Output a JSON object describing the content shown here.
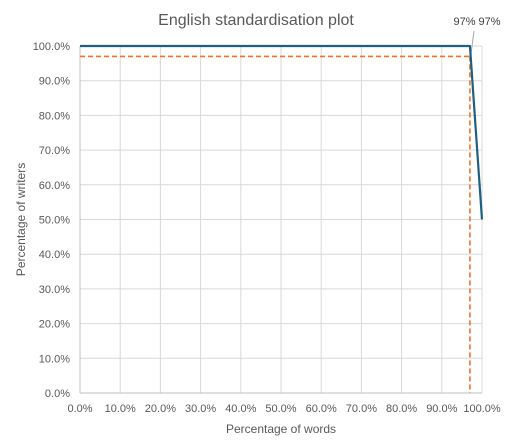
{
  "chart_data": {
    "type": "line",
    "title": "English standardisation plot",
    "xlabel": "Percentage of words",
    "ylabel": "Percentage of writers",
    "xlim": [
      0,
      100
    ],
    "ylim": [
      0,
      100
    ],
    "x_ticks": [
      "0.0%",
      "10.0%",
      "20.0%",
      "30.0%",
      "40.0%",
      "50.0%",
      "60.0%",
      "70.0%",
      "80.0%",
      "90.0%",
      "100.0%"
    ],
    "y_ticks": [
      "0.0%",
      "10.0%",
      "20.0%",
      "30.0%",
      "40.0%",
      "50.0%",
      "60.0%",
      "70.0%",
      "80.0%",
      "90.0%",
      "100.0%"
    ],
    "grid": true,
    "series": [
      {
        "color": "#1f5f7f",
        "style": "solid",
        "x": [
          0,
          97,
          100
        ],
        "y": [
          100,
          100,
          50
        ]
      }
    ],
    "reference_lines": {
      "color": "#e8762d",
      "style": "dashed",
      "x": 97,
      "y": 97
    },
    "annotation": "97% 97%"
  }
}
